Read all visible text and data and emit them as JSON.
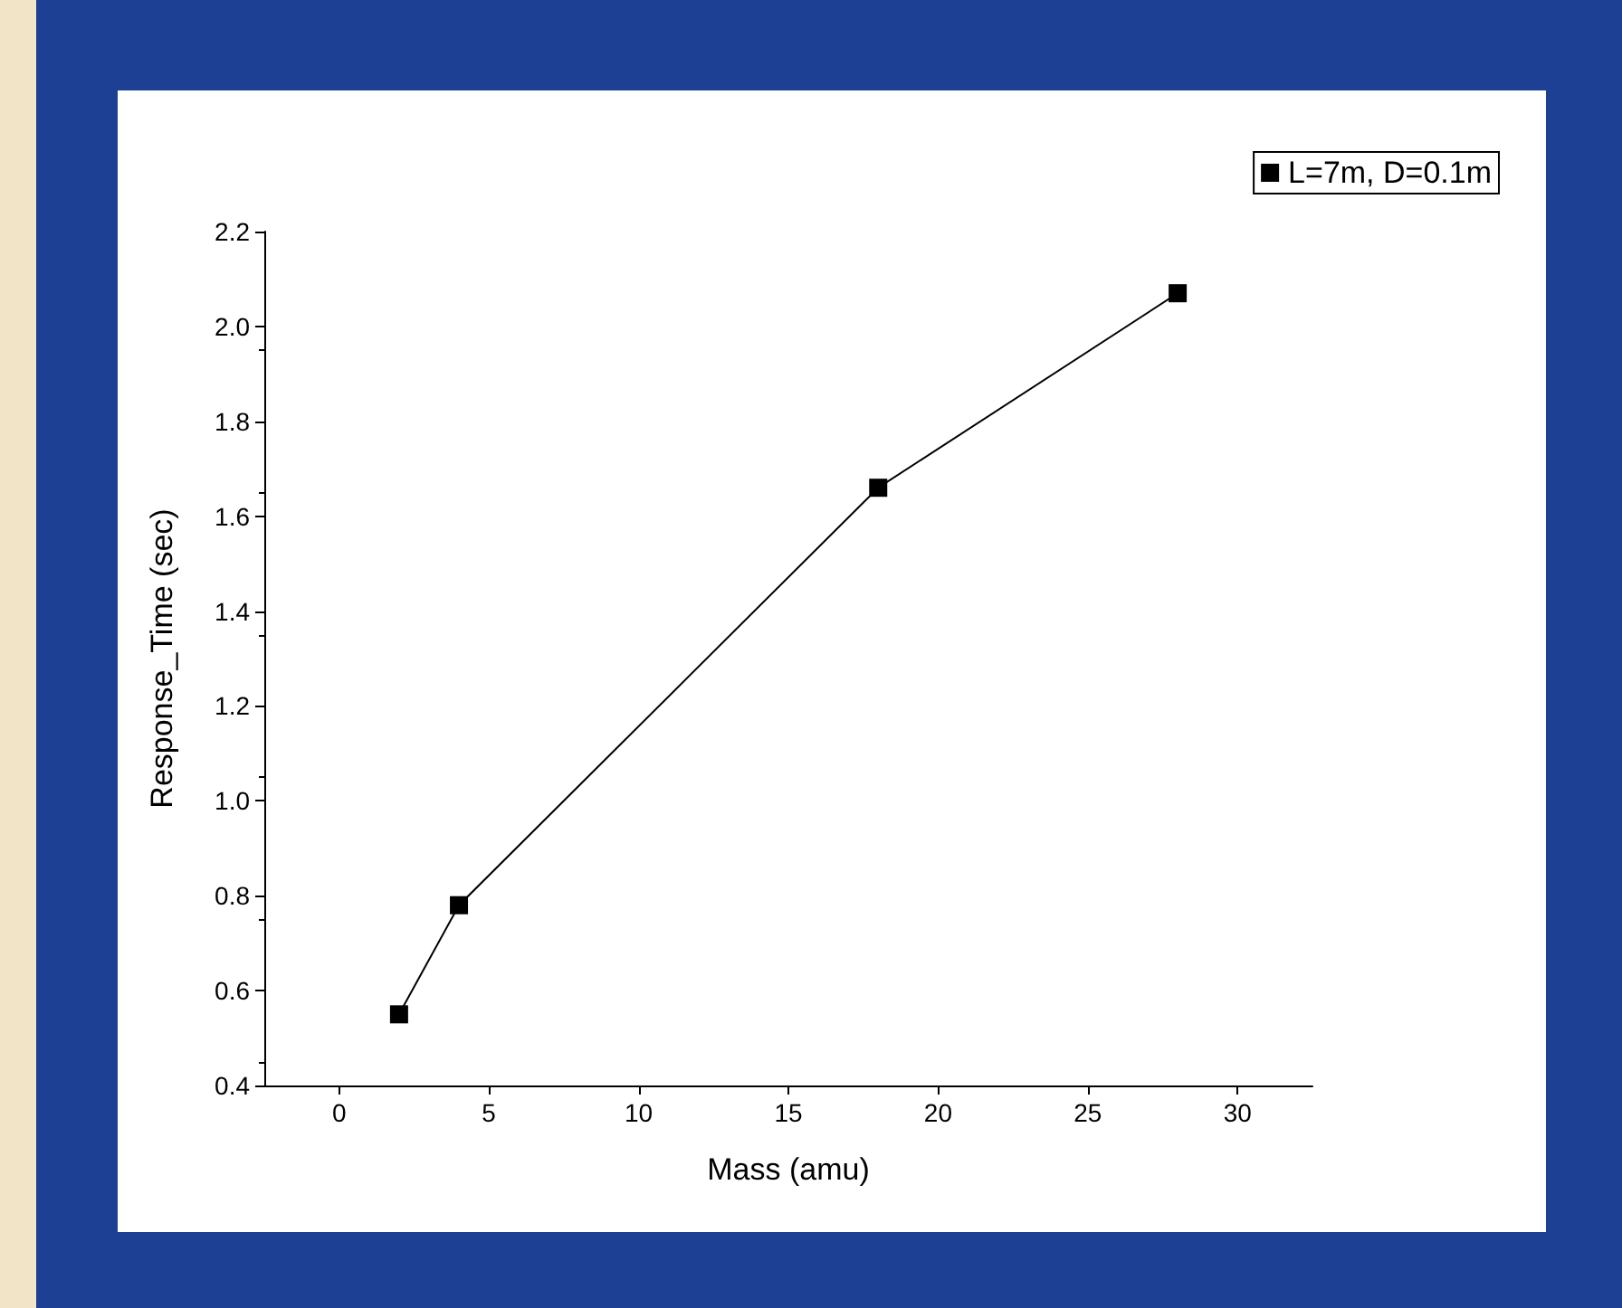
{
  "chart_data": {
    "type": "line",
    "xlabel": "Mass (amu)",
    "ylabel": "Response_Time (sec)",
    "x": [
      2,
      4,
      18,
      28
    ],
    "series": [
      {
        "name": "L=7m, D=0.1m",
        "color": "#000000",
        "values": [
          0.55,
          0.78,
          1.66,
          2.07
        ]
      }
    ],
    "xlim": [
      -2.5,
      32.5
    ],
    "xticks": [
      0,
      5,
      10,
      15,
      20,
      25,
      30
    ],
    "ylim": [
      0.4,
      2.2
    ],
    "yticks": [
      {
        "value": 0.4,
        "label": "0.4"
      },
      {
        "value": 0.6,
        "label": "0.6"
      },
      {
        "value": 0.8,
        "label": "0.8"
      },
      {
        "value": 1.0,
        "label": "1.0"
      },
      {
        "value": 1.2,
        "label": "1.2"
      },
      {
        "value": 1.4,
        "label": "1.4"
      },
      {
        "value": 1.6,
        "label": "1.6"
      },
      {
        "value": 1.8,
        "label": "1.8"
      },
      {
        "value": 2.0,
        "label": "2.0"
      },
      {
        "value": 2.2,
        "label": "2.2"
      }
    ],
    "grid": false,
    "legend": "top right",
    "marker": "square",
    "line_style": "solid"
  }
}
